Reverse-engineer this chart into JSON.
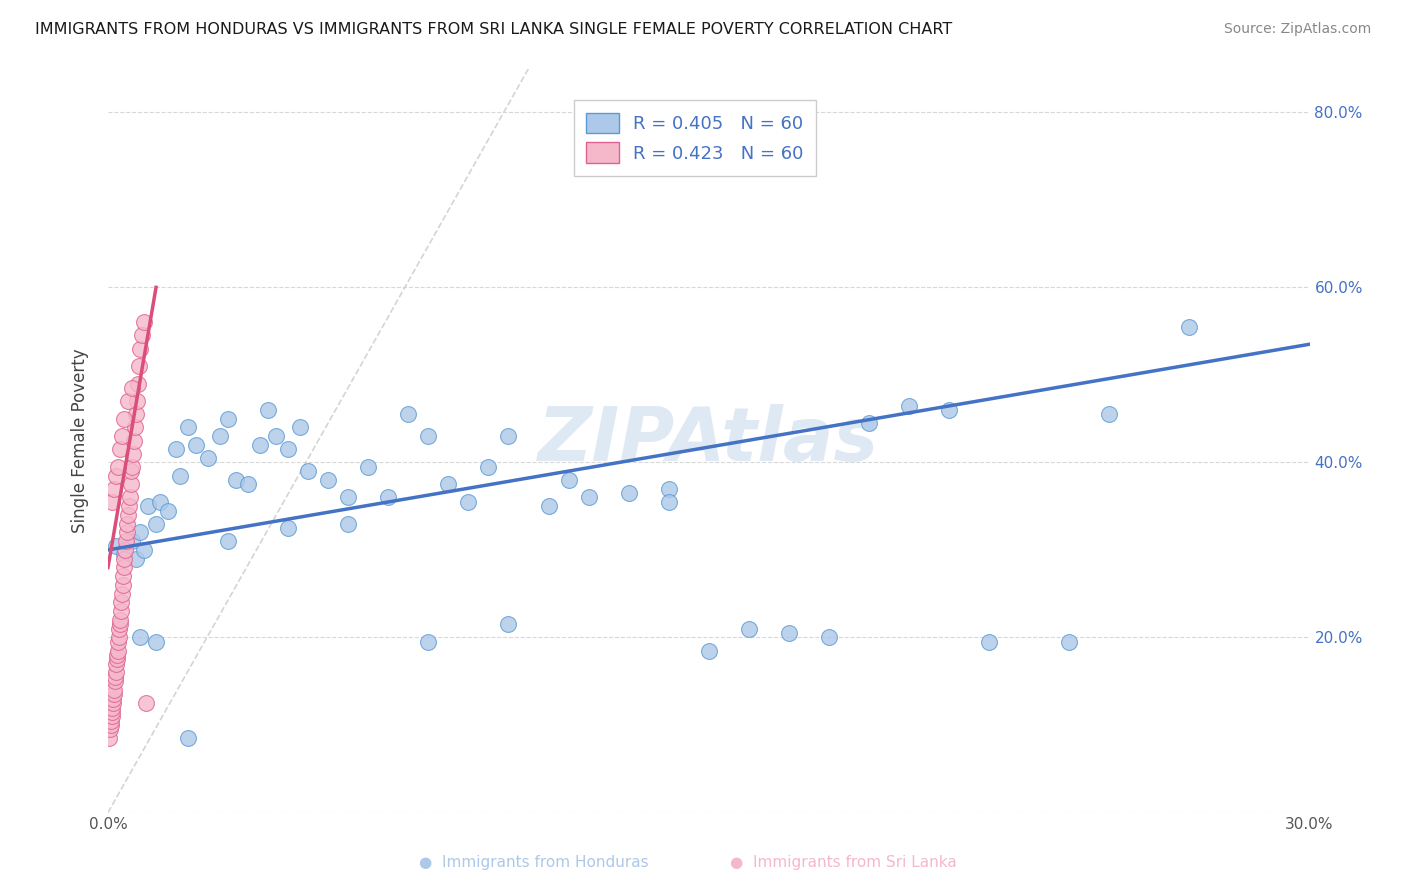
{
  "title": "IMMIGRANTS FROM HONDURAS VS IMMIGRANTS FROM SRI LANKA SINGLE FEMALE POVERTY CORRELATION CHART",
  "source": "Source: ZipAtlas.com",
  "ylabel": "Single Female Poverty",
  "xlim": [
    0.0,
    0.3
  ],
  "ylim": [
    0.0,
    0.85
  ],
  "xtick_positions": [
    0.0,
    0.05,
    0.1,
    0.15,
    0.2,
    0.25,
    0.3
  ],
  "xticklabels": [
    "0.0%",
    "",
    "",
    "",
    "",
    "",
    "30.0%"
  ],
  "ytick_positions": [
    0.0,
    0.2,
    0.4,
    0.6,
    0.8
  ],
  "yticklabels_right": [
    "",
    "20.0%",
    "40.0%",
    "60.0%",
    "80.0%"
  ],
  "legend1_label": "R = 0.405   N = 60",
  "legend2_label": "R = 0.423   N = 60",
  "honduras_fill": "#adc8e8",
  "honduras_edge": "#5b9bd5",
  "srilanka_fill": "#f5b8cb",
  "srilanka_edge": "#e06090",
  "trend_honduras_color": "#4472c4",
  "trend_srilanka_color": "#d94f7a",
  "right_tick_color": "#4472c4",
  "watermark": "ZIPAtlas",
  "diag_color": "#d0d0d0",
  "grid_color": "#d8d8d8",
  "honduras_x": [
    0.002,
    0.004,
    0.006,
    0.007,
    0.008,
    0.009,
    0.01,
    0.012,
    0.013,
    0.015,
    0.017,
    0.018,
    0.02,
    0.022,
    0.025,
    0.028,
    0.03,
    0.032,
    0.035,
    0.038,
    0.04,
    0.042,
    0.045,
    0.048,
    0.05,
    0.055,
    0.06,
    0.065,
    0.07,
    0.075,
    0.08,
    0.085,
    0.09,
    0.095,
    0.1,
    0.11,
    0.115,
    0.12,
    0.13,
    0.14,
    0.15,
    0.16,
    0.17,
    0.18,
    0.19,
    0.2,
    0.21,
    0.22,
    0.24,
    0.25,
    0.008,
    0.012,
    0.02,
    0.03,
    0.045,
    0.06,
    0.08,
    0.1,
    0.14,
    0.27
  ],
  "honduras_y": [
    0.305,
    0.295,
    0.31,
    0.29,
    0.32,
    0.3,
    0.35,
    0.33,
    0.355,
    0.345,
    0.415,
    0.385,
    0.44,
    0.42,
    0.405,
    0.43,
    0.45,
    0.38,
    0.375,
    0.42,
    0.46,
    0.43,
    0.415,
    0.44,
    0.39,
    0.38,
    0.36,
    0.395,
    0.36,
    0.455,
    0.43,
    0.375,
    0.355,
    0.395,
    0.43,
    0.35,
    0.38,
    0.36,
    0.365,
    0.37,
    0.185,
    0.21,
    0.205,
    0.2,
    0.445,
    0.465,
    0.46,
    0.195,
    0.195,
    0.455,
    0.2,
    0.195,
    0.085,
    0.31,
    0.325,
    0.33,
    0.195,
    0.215,
    0.355,
    0.555
  ],
  "srilanka_x": [
    0.0003,
    0.0005,
    0.0007,
    0.0008,
    0.001,
    0.001,
    0.001,
    0.0012,
    0.0013,
    0.0015,
    0.0015,
    0.0017,
    0.0018,
    0.002,
    0.002,
    0.0022,
    0.0023,
    0.0025,
    0.0025,
    0.0027,
    0.0028,
    0.003,
    0.003,
    0.0032,
    0.0033,
    0.0035,
    0.0037,
    0.0038,
    0.004,
    0.004,
    0.0042,
    0.0045,
    0.0047,
    0.0048,
    0.005,
    0.0052,
    0.0055,
    0.0057,
    0.0058,
    0.006,
    0.0062,
    0.0065,
    0.0068,
    0.007,
    0.0073,
    0.0075,
    0.0078,
    0.008,
    0.0085,
    0.009,
    0.001,
    0.0015,
    0.002,
    0.0025,
    0.003,
    0.0035,
    0.004,
    0.005,
    0.006,
    0.0095
  ],
  "srilanka_y": [
    0.085,
    0.095,
    0.1,
    0.105,
    0.11,
    0.115,
    0.12,
    0.125,
    0.13,
    0.135,
    0.14,
    0.15,
    0.155,
    0.16,
    0.17,
    0.175,
    0.18,
    0.185,
    0.195,
    0.2,
    0.21,
    0.215,
    0.22,
    0.23,
    0.24,
    0.25,
    0.26,
    0.27,
    0.28,
    0.29,
    0.3,
    0.31,
    0.32,
    0.33,
    0.34,
    0.35,
    0.36,
    0.375,
    0.39,
    0.395,
    0.41,
    0.425,
    0.44,
    0.455,
    0.47,
    0.49,
    0.51,
    0.53,
    0.545,
    0.56,
    0.355,
    0.37,
    0.385,
    0.395,
    0.415,
    0.43,
    0.45,
    0.47,
    0.485,
    0.125
  ],
  "trend_h_x0": 0.0,
  "trend_h_x1": 0.3,
  "trend_h_y0": 0.3,
  "trend_h_y1": 0.535,
  "trend_sl_x0": 0.0,
  "trend_sl_x1": 0.012,
  "trend_sl_y0": 0.28,
  "trend_sl_y1": 0.6
}
